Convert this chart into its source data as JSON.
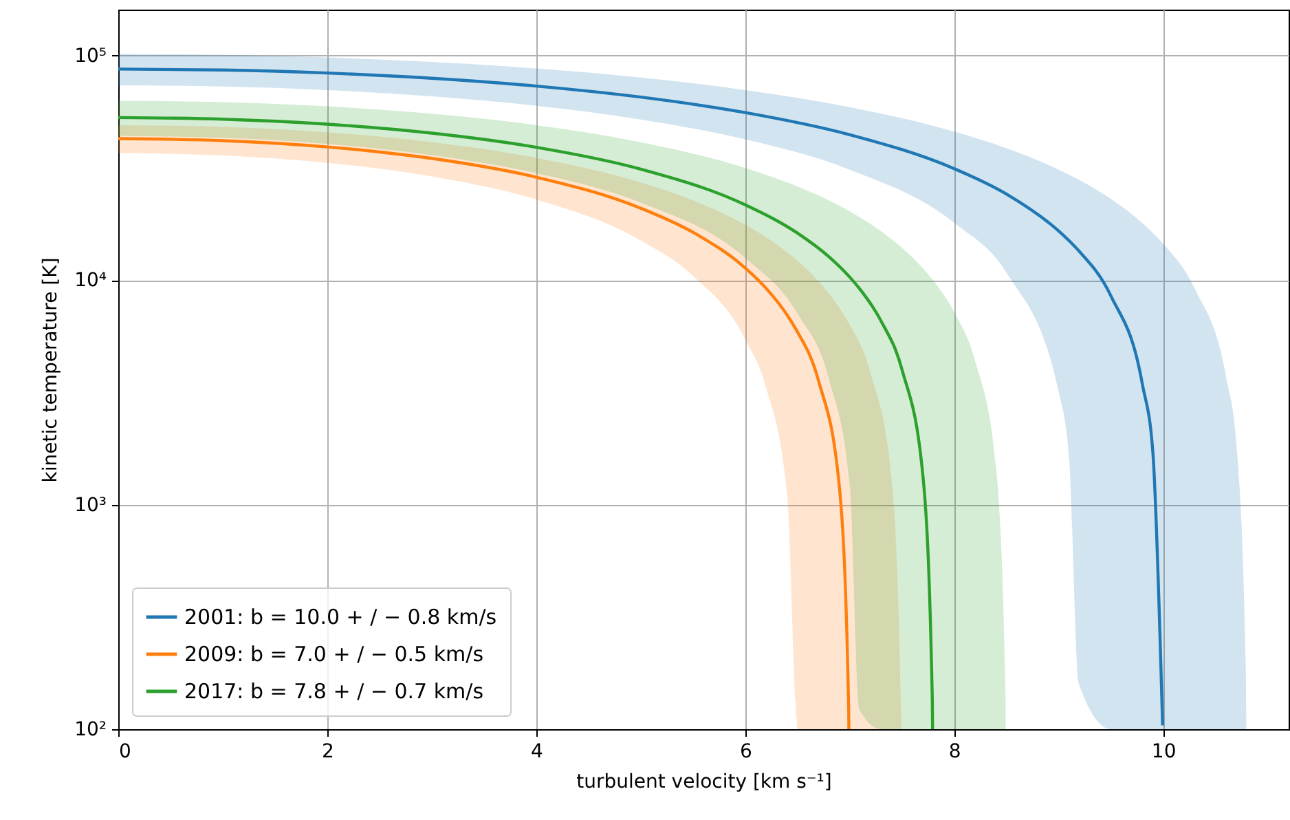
{
  "chart_data": {
    "type": "line",
    "xlabel": "turbulent velocity [km s⁻¹]",
    "ylabel": "kinetic temperature [K]",
    "log": "y",
    "grid": true,
    "legend": "bottom left",
    "xlim": [
      0,
      11.2
    ],
    "xticks": [
      0,
      2,
      4,
      6,
      8,
      10
    ],
    "ylim": [
      100,
      160000
    ],
    "yticks": [
      {
        "value": 100,
        "label": "10²"
      },
      {
        "value": 1000,
        "label": "10³"
      },
      {
        "value": 10000,
        "label": "10⁴"
      },
      {
        "value": 100000,
        "label": "10⁵"
      }
    ],
    "series": [
      {
        "name": "2001: b = 10.0 + / − 0.8 km/s",
        "color": "#1f77b4",
        "x": [
          0,
          1,
          2,
          3,
          4,
          5,
          6,
          7,
          8,
          8.5,
          9,
          9.1,
          9.19,
          9.5,
          9.8,
          9.9,
          9.994,
          10.3,
          10.6,
          10.7,
          10.79,
          10.7947
        ],
        "values": [
          87000,
          86130,
          83520,
          79170,
          73080,
          65250,
          55680,
          44370,
          31320,
          24143,
          16530,
          14955,
          13523,
          8483,
          3445,
          1731,
          104,
          null,
          null,
          null,
          null,
          null
        ],
        "lower": [
          73637,
          72767,
          70157,
          65807,
          59717,
          51887,
          42317,
          31007,
          17957,
          10779,
          3167,
          1592,
          160,
          100,
          100,
          100,
          100,
          100,
          100,
          100,
          100,
          100
        ],
        "upper": [
          101477,
          100607,
          97997,
          93647,
          87557,
          79727,
          70157,
          58847,
          45797,
          38619,
          31007,
          29432,
          28000,
          22959,
          17922,
          16208,
          14581,
          9179,
          3724,
          1871,
          188,
          100
        ]
      },
      {
        "name": "2009: b = 7.0 + / − 0.5 km/s",
        "color": "#ff7f0e",
        "x": [
          0,
          1,
          2,
          3,
          4,
          5,
          5.5,
          6,
          6.2,
          6.4,
          6.49,
          6.5,
          6.7,
          6.9,
          6.99,
          6.9918,
          7.2,
          7.4,
          7.49,
          7.4923
        ],
        "values": [
          42630,
          41760,
          39150,
          34800,
          28710,
          20880,
          16313,
          11310,
          9187,
          6995,
          5986,
          5873,
          3576,
          1209,
          122,
          100,
          null,
          null,
          null,
          null
        ],
        "lower": [
          36758,
          35888,
          33278,
          28928,
          22838,
          15008,
          10440,
          5438,
          3315,
          1122,
          113,
          100,
          100,
          100,
          100,
          100,
          100,
          100,
          100,
          100
        ],
        "upper": [
          48938,
          48068,
          45458,
          41108,
          35018,
          27188,
          22620,
          17618,
          15495,
          13302,
          12293,
          12180,
          9883,
          7517,
          6429,
          6407,
          3837,
          1296,
          130,
          100
        ]
      },
      {
        "name": "2017: b = 7.8 + / − 0.7 km/s",
        "color": "#2ca02c",
        "x": [
          0,
          1,
          2,
          3,
          4,
          5,
          6,
          6.5,
          6.8,
          7,
          7.09,
          7.3,
          7.5,
          7.7,
          7.79,
          7.7926,
          8,
          8.2,
          8.4,
          8.49,
          8.4932
        ],
        "values": [
          52931,
          52061,
          49451,
          45101,
          39011,
          31181,
          21611,
          16173,
          12702,
          10301,
          9198,
          6569,
          3993,
          1349,
          136,
          100,
          null,
          null,
          null,
          null,
          null
        ],
        "lower": [
          43857,
          42987,
          40377,
          36027,
          29937,
          22107,
          12537,
          7099,
          3628,
          1227,
          123,
          100,
          100,
          100,
          100,
          100,
          100,
          100,
          100,
          100,
          100
        ],
        "upper": [
          62858,
          61988,
          59378,
          55028,
          48938,
          41108,
          31538,
          26100,
          22629,
          20228,
          19124,
          16495,
          13920,
          11275,
          10062,
          10027,
          7178,
          4359,
          1470,
          148,
          100
        ]
      }
    ]
  }
}
